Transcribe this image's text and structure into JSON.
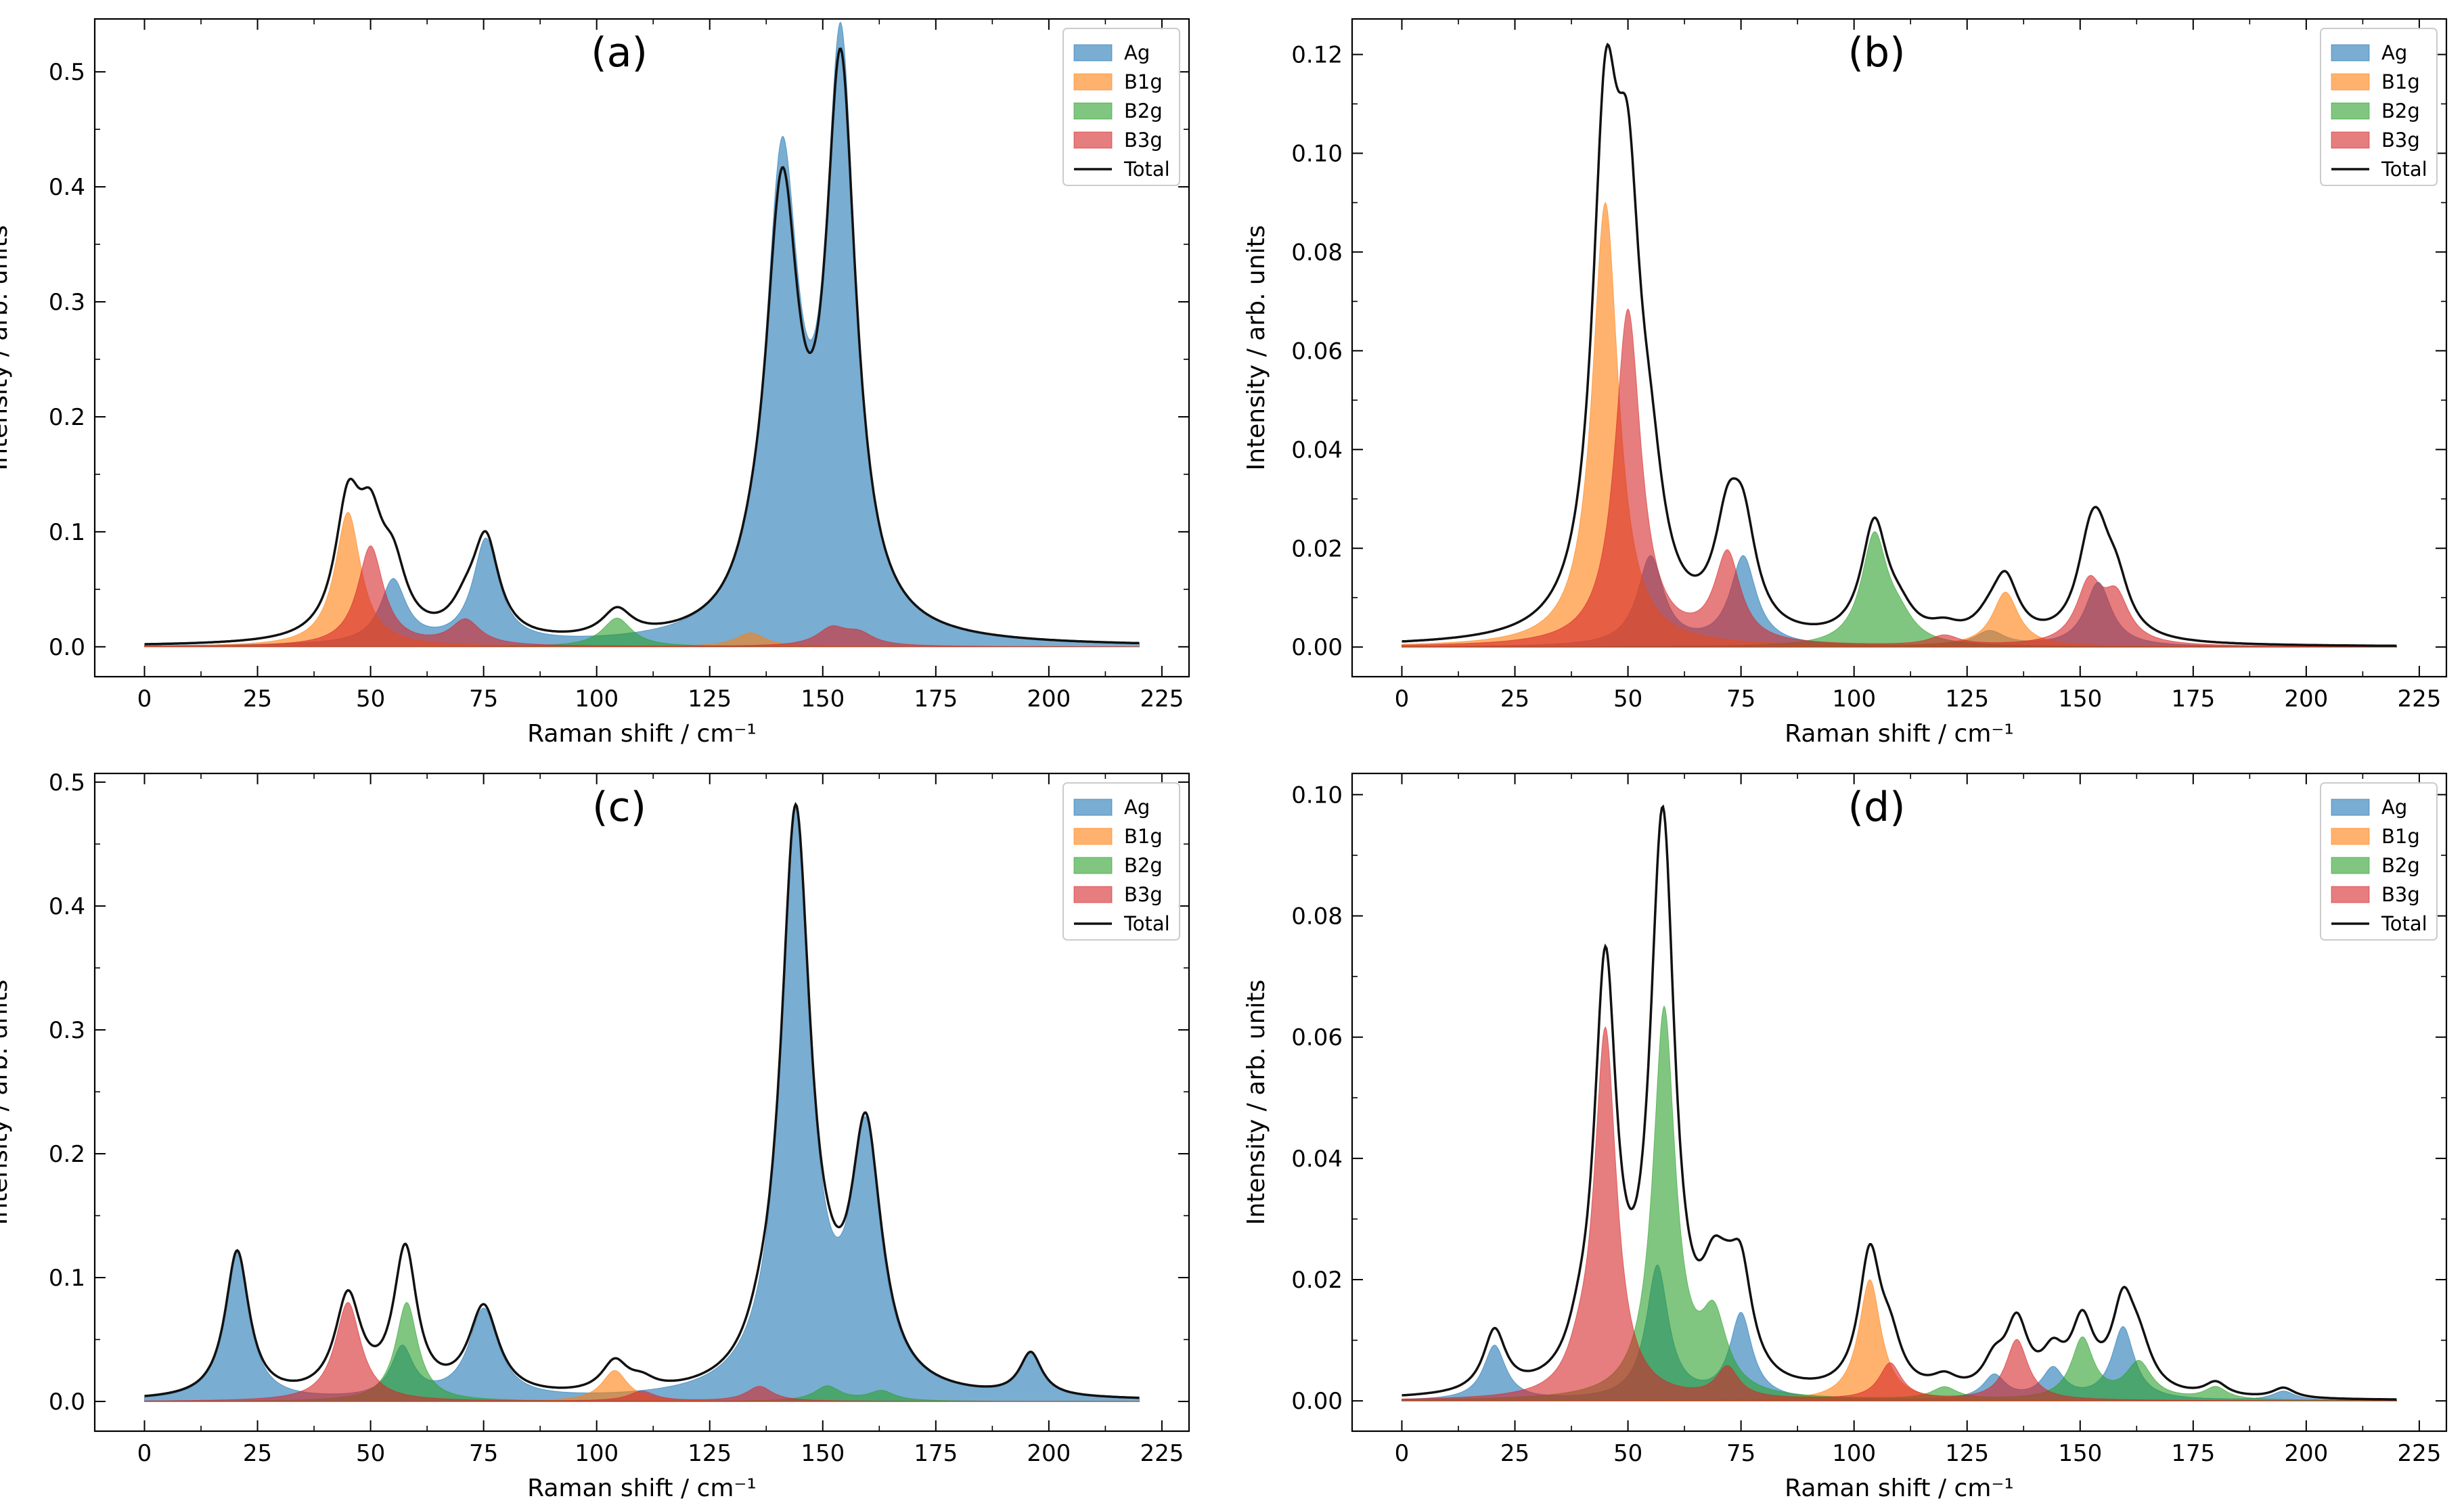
{
  "chart_data": [
    {
      "type": "area",
      "panel_label": "(a)",
      "xlabel": "Raman shift / cm⁻¹",
      "ylabel": "Intensity / arb. units",
      "xlim": [
        -11,
        231
      ],
      "ylim": [
        -0.026,
        0.546
      ],
      "xticks": [
        0,
        25,
        50,
        75,
        100,
        125,
        150,
        175,
        200,
        225
      ],
      "yticks": [
        0.0,
        0.1,
        0.2,
        0.3,
        0.4,
        0.5
      ],
      "ytick_labels": [
        "0.0",
        "0.1",
        "0.2",
        "0.3",
        "0.4",
        "0.5"
      ],
      "legend": [
        "Ag",
        "B1g",
        "B2g",
        "B3g",
        "Total"
      ],
      "legend_position": "top-right",
      "series": [
        {
          "name": "Ag",
          "peaks": [
            [
              55,
              0.055,
              3.5
            ],
            [
              75.5,
              0.09,
              3.5
            ],
            [
              141,
              0.4,
              4.5
            ],
            [
              154,
              0.5,
              4.0
            ]
          ]
        },
        {
          "name": "B1g",
          "peaks": [
            [
              45,
              0.117,
              3.5
            ],
            [
              134,
              0.012,
              4.0
            ]
          ]
        },
        {
          "name": "B2g",
          "peaks": [
            [
              104.5,
              0.025,
              4.0
            ]
          ]
        },
        {
          "name": "B3g",
          "peaks": [
            [
              50,
              0.087,
              3.5
            ],
            [
              71,
              0.022,
              4.0
            ],
            [
              152,
              0.015,
              4.0
            ],
            [
              158,
              0.01,
              4.0
            ]
          ]
        }
      ],
      "total": {
        "name": "Total",
        "max": 0.52
      }
    },
    {
      "type": "area",
      "panel_label": "(b)",
      "xlabel": "Raman shift / cm⁻¹",
      "ylabel": "Intensity / arb. units",
      "xlim": [
        -11,
        231
      ],
      "ylim": [
        -0.006,
        0.1272
      ],
      "xticks": [
        0,
        25,
        50,
        75,
        100,
        125,
        150,
        175,
        200,
        225
      ],
      "yticks": [
        0.0,
        0.02,
        0.04,
        0.06,
        0.08,
        0.1,
        0.12
      ],
      "ytick_labels": [
        "0.00",
        "0.02",
        "0.04",
        "0.06",
        "0.08",
        "0.10",
        "0.12"
      ],
      "legend": [
        "Ag",
        "B1g",
        "B2g",
        "B3g",
        "Total"
      ],
      "legend_position": "top-right",
      "series": [
        {
          "name": "Ag",
          "peaks": [
            [
              55,
              0.018,
              3.5
            ],
            [
              75.5,
              0.018,
              3.5
            ],
            [
              130,
              0.003,
              4.0
            ],
            [
              154,
              0.013,
              3.5
            ]
          ]
        },
        {
          "name": "B1g",
          "peaks": [
            [
              45,
              0.09,
              3.5
            ],
            [
              133.5,
              0.011,
              3.5
            ]
          ]
        },
        {
          "name": "B2g",
          "peaks": [
            [
              104.5,
              0.022,
              3.5
            ],
            [
              110,
              0.004,
              4.0
            ]
          ]
        },
        {
          "name": "B3g",
          "peaks": [
            [
              50,
              0.068,
              3.5
            ],
            [
              72,
              0.018,
              3.5
            ],
            [
              120,
              0.002,
              4.0
            ],
            [
              152,
              0.012,
              3.5
            ],
            [
              158,
              0.009,
              3.5
            ]
          ]
        }
      ],
      "total": {
        "name": "Total",
        "max": 0.122
      }
    },
    {
      "type": "area",
      "panel_label": "(c)",
      "xlabel": "Raman shift / cm⁻¹",
      "ylabel": "Intensity / arb. units",
      "xlim": [
        -11,
        231
      ],
      "ylim": [
        -0.024,
        0.507
      ],
      "xticks": [
        0,
        25,
        50,
        75,
        100,
        125,
        150,
        175,
        200,
        225
      ],
      "yticks": [
        0.0,
        0.1,
        0.2,
        0.3,
        0.4,
        0.5
      ],
      "ytick_labels": [
        "0.0",
        "0.1",
        "0.2",
        "0.3",
        "0.4",
        "0.5"
      ],
      "legend": [
        "Ag",
        "B1g",
        "B2g",
        "B3g",
        "Total"
      ],
      "legend_position": "top-right",
      "series": [
        {
          "name": "Ag",
          "peaks": [
            [
              20.5,
              0.12,
              3.2
            ],
            [
              57,
              0.04,
              3.0
            ],
            [
              75,
              0.072,
              4.0
            ],
            [
              144,
              0.47,
              4.0
            ],
            [
              159.5,
              0.2,
              4.0
            ],
            [
              196,
              0.035,
              3.0
            ]
          ]
        },
        {
          "name": "B1g",
          "peaks": [
            [
              104,
              0.025,
              3.5
            ]
          ]
        },
        {
          "name": "B2g",
          "peaks": [
            [
              58,
              0.08,
              3.0
            ],
            [
              151,
              0.012,
              3.5
            ],
            [
              163,
              0.008,
              3.5
            ]
          ]
        },
        {
          "name": "B3g",
          "peaks": [
            [
              45,
              0.08,
              3.5
            ],
            [
              110,
              0.008,
              3.5
            ],
            [
              136,
              0.012,
              3.5
            ]
          ]
        }
      ],
      "total": {
        "name": "Total",
        "max": 0.482
      }
    },
    {
      "type": "area",
      "panel_label": "(d)",
      "xlabel": "Raman shift / cm⁻¹",
      "ylabel": "Intensity / arb. units",
      "xlim": [
        -11,
        231
      ],
      "ylim": [
        -0.005,
        0.1035
      ],
      "xticks": [
        0,
        25,
        50,
        75,
        100,
        125,
        150,
        175,
        200,
        225
      ],
      "yticks": [
        0.0,
        0.02,
        0.04,
        0.06,
        0.08,
        0.1
      ],
      "ytick_labels": [
        "0.00",
        "0.02",
        "0.04",
        "0.06",
        "0.08",
        "0.10"
      ],
      "legend": [
        "Ag",
        "B1g",
        "B2g",
        "B3g",
        "Total"
      ],
      "legend_position": "top-right",
      "series": [
        {
          "name": "Ag",
          "peaks": [
            [
              20.5,
              0.009,
              3.0
            ],
            [
              56.5,
              0.022,
              3.0
            ],
            [
              75,
              0.014,
              3.0
            ],
            [
              131,
              0.004,
              3.0
            ],
            [
              144,
              0.005,
              3.0
            ],
            [
              159.5,
              0.012,
              3.0
            ],
            [
              195,
              0.0015,
              3.0
            ]
          ]
        },
        {
          "name": "B1g",
          "peaks": [
            [
              103.5,
              0.02,
              3.0
            ]
          ]
        },
        {
          "name": "B2g",
          "peaks": [
            [
              58,
              0.064,
              3.0
            ],
            [
              69,
              0.012,
              3.5
            ],
            [
              120,
              0.002,
              3.5
            ],
            [
              150.5,
              0.01,
              3.0
            ],
            [
              163,
              0.006,
              3.5
            ],
            [
              180,
              0.002,
              3.0
            ]
          ]
        },
        {
          "name": "B3g",
          "peaks": [
            [
              39,
              0.003,
              3.0
            ],
            [
              45,
              0.061,
              3.0
            ],
            [
              72,
              0.005,
              3.0
            ],
            [
              108,
              0.006,
              3.0
            ],
            [
              136,
              0.01,
              3.0
            ]
          ]
        }
      ],
      "total": {
        "name": "Total",
        "max": 0.098
      }
    }
  ],
  "colors": {
    "Ag": "#1f77b4",
    "B1g": "#ff7f0e",
    "B2g": "#2ca02c",
    "B3g": "#d62728",
    "Total": "#111111"
  }
}
